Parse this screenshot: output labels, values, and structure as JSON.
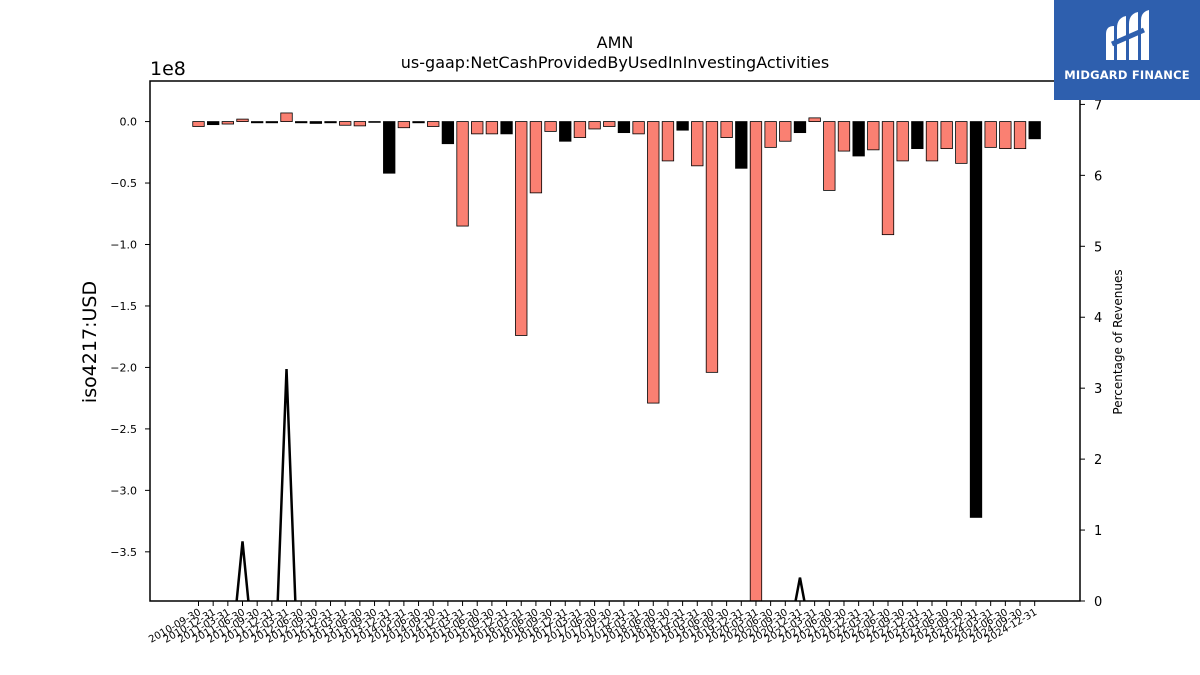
{
  "chart_data": {
    "type": "bar",
    "title": "AMN",
    "subtitle": "us-gaap:NetCashProvidedByUsedInInvestingActivities",
    "ylabel": "iso4217:USD",
    "y_offset_label": "1e8",
    "y2label": "Percentage of Revenues",
    "ylim": [
      -3.9,
      0.33
    ],
    "y2lim": [
      0,
      7.33
    ],
    "yticks": [
      "0.0",
      "−0.5",
      "−1.0",
      "−1.5",
      "−2.0",
      "−2.5",
      "−3.0",
      "−3.5"
    ],
    "y2ticks": [
      "0",
      "1",
      "2",
      "3",
      "4",
      "5",
      "6",
      "7"
    ],
    "grid": false,
    "colors": {
      "positive_change": "#fa8072",
      "negative_change": "#000000",
      "edge": "#000000",
      "line": "#000000"
    },
    "categories": [
      "2010-09-30",
      "2010-12-31",
      "2011-03-31",
      "2011-06-30",
      "2011-09-30",
      "2011-12-31",
      "2012-03-31",
      "2012-06-30",
      "2012-09-30",
      "2012-12-31",
      "2013-03-31",
      "2013-06-30",
      "2013-09-30",
      "2013-12-31",
      "2014-03-31",
      "2014-06-30",
      "2014-09-30",
      "2014-12-31",
      "2015-03-31",
      "2015-06-30",
      "2015-09-30",
      "2015-12-31",
      "2016-03-31",
      "2016-06-30",
      "2016-09-30",
      "2016-12-31",
      "2017-03-31",
      "2017-06-30",
      "2017-09-30",
      "2017-12-31",
      "2018-03-31",
      "2018-06-30",
      "2018-09-30",
      "2018-12-31",
      "2019-03-31",
      "2019-06-30",
      "2019-09-30",
      "2019-12-31",
      "2020-03-31",
      "2020-06-30",
      "2020-09-30",
      "2020-12-31",
      "2021-03-31",
      "2021-06-30",
      "2021-09-30",
      "2021-12-31",
      "2022-03-31",
      "2022-06-30",
      "2022-09-30",
      "2022-12-31",
      "2023-03-31",
      "2023-06-30",
      "2023-09-30",
      "2023-12-31",
      "2024-03-31",
      "2024-06-30",
      "2024-09-30",
      "2024-12-31"
    ],
    "series": [
      {
        "type": "bar",
        "values": [
          -0.04,
          -0.025,
          -0.02,
          0.02,
          -0.01,
          -0.01,
          0.07,
          -0.01,
          -0.015,
          -0.01,
          -0.03,
          -0.035,
          -0.005,
          -0.42,
          -0.05,
          -0.01,
          -0.04,
          -0.18,
          -0.85,
          -0.1,
          -0.1,
          -0.1,
          -1.74,
          -0.58,
          -0.08,
          -0.16,
          -0.13,
          -0.06,
          -0.04,
          -0.09,
          -0.1,
          -2.29,
          -0.32,
          -0.07,
          -0.36,
          -2.04,
          -0.13,
          -0.38,
          -3.9,
          -0.21,
          -0.16,
          -0.09,
          0.03,
          -0.56,
          -0.24,
          -0.28,
          -0.23,
          -0.92,
          -0.32,
          -0.22,
          -0.32,
          -0.22,
          -0.34,
          -3.22,
          -0.21,
          -0.22,
          -0.22,
          -0.14
        ],
        "bar_colors": [
          "salmon",
          "black",
          "salmon",
          "salmon",
          "black",
          "black",
          "salmon",
          "black",
          "black",
          "black",
          "salmon",
          "salmon",
          "black",
          "black",
          "salmon",
          "black",
          "salmon",
          "black",
          "salmon",
          "salmon",
          "salmon",
          "black",
          "salmon",
          "salmon",
          "salmon",
          "black",
          "salmon",
          "salmon",
          "salmon",
          "black",
          "salmon",
          "salmon",
          "salmon",
          "black",
          "salmon",
          "salmon",
          "salmon",
          "black",
          "salmon",
          "salmon",
          "salmon",
          "black",
          "salmon",
          "salmon",
          "salmon",
          "black",
          "salmon",
          "salmon",
          "salmon",
          "black",
          "salmon",
          "salmon",
          "salmon",
          "black",
          "salmon",
          "salmon",
          "salmon",
          "black"
        ]
      },
      {
        "type": "line",
        "axis": "right",
        "values": [
          null,
          null,
          null,
          0,
          0.84,
          0,
          null,
          0,
          3.27,
          0,
          null,
          null,
          null,
          null,
          null,
          null,
          null,
          null,
          null,
          null,
          null,
          null,
          null,
          null,
          null,
          null,
          null,
          null,
          null,
          null,
          null,
          null,
          null,
          null,
          null,
          null,
          null,
          null,
          null,
          null,
          null,
          0,
          0.33,
          0,
          null,
          null,
          null,
          null,
          null,
          null,
          null,
          null,
          null,
          null,
          null,
          null,
          null,
          null
        ],
        "line_x_indices": [
          2.6,
          3,
          3.4,
          5.4,
          6,
          6.6,
          40.7,
          41,
          41.3
        ],
        "line_y_values": [
          0,
          0.84,
          0,
          0,
          3.27,
          0,
          0,
          0.33,
          0
        ]
      }
    ]
  },
  "logo": {
    "text": "MIDGARD FINANCE",
    "background": "#2e5fae"
  }
}
